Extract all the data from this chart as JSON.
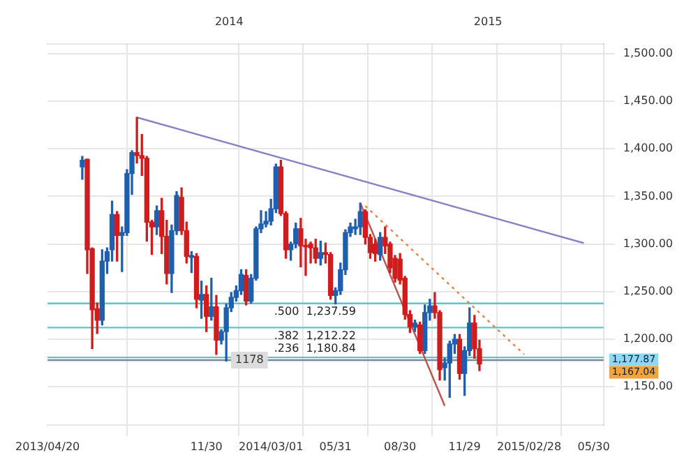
{
  "chart_data": {
    "type": "candlestick",
    "x": [
      "2013-06-08",
      "2013-06-15",
      "2013-06-22",
      "2013-06-29",
      "2013-07-06",
      "2013-07-13",
      "2013-07-20",
      "2013-07-27",
      "2013-08-03",
      "2013-08-10",
      "2013-08-17",
      "2013-08-24",
      "2013-08-31",
      "2013-09-07",
      "2013-09-14",
      "2013-09-21",
      "2013-09-28",
      "2013-10-05",
      "2013-10-12",
      "2013-10-19",
      "2013-10-26",
      "2013-11-02",
      "2013-11-09",
      "2013-11-16",
      "2013-11-23",
      "2013-11-30",
      "2013-12-07",
      "2013-12-14",
      "2013-12-21",
      "2013-12-28",
      "2014-01-04",
      "2014-01-11",
      "2014-01-18",
      "2014-01-25",
      "2014-02-01",
      "2014-02-08",
      "2014-02-15",
      "2014-02-22",
      "2014-03-01",
      "2014-03-08",
      "2014-03-15",
      "2014-03-22",
      "2014-03-29",
      "2014-04-05",
      "2014-04-12",
      "2014-04-19",
      "2014-04-26",
      "2014-05-03",
      "2014-05-10",
      "2014-05-17",
      "2014-05-24",
      "2014-05-31",
      "2014-06-07",
      "2014-06-14",
      "2014-06-21",
      "2014-06-28",
      "2014-07-05",
      "2014-07-12",
      "2014-07-19",
      "2014-07-26",
      "2014-08-02",
      "2014-08-09",
      "2014-08-16",
      "2014-08-23",
      "2014-08-30",
      "2014-09-06",
      "2014-09-13",
      "2014-09-20",
      "2014-09-27",
      "2014-10-04",
      "2014-10-11",
      "2014-10-18",
      "2014-10-25",
      "2014-11-01",
      "2014-11-08",
      "2014-11-15",
      "2014-11-22",
      "2014-11-29",
      "2014-12-06",
      "2014-12-13",
      "2014-12-20"
    ],
    "ohlc": [
      [
        1381,
        1392,
        1368,
        1388
      ],
      [
        1389,
        1389,
        1269,
        1294
      ],
      [
        1295,
        1296,
        1190,
        1231
      ],
      [
        1232,
        1238,
        1206,
        1220
      ],
      [
        1220,
        1294,
        1215,
        1282
      ],
      [
        1282,
        1296,
        1269,
        1292
      ],
      [
        1294,
        1345,
        1282,
        1331
      ],
      [
        1331,
        1334,
        1282,
        1309
      ],
      [
        1309,
        1318,
        1271,
        1312
      ],
      [
        1312,
        1378,
        1309,
        1374
      ],
      [
        1374,
        1398,
        1352,
        1396
      ],
      [
        1396,
        1433,
        1385,
        1393
      ],
      [
        1393,
        1415,
        1372,
        1390
      ],
      [
        1390,
        1392,
        1303,
        1323
      ],
      [
        1323,
        1325,
        1289,
        1318
      ],
      [
        1318,
        1340,
        1310,
        1335
      ],
      [
        1335,
        1348,
        1290,
        1308
      ],
      [
        1308,
        1325,
        1258,
        1269
      ],
      [
        1269,
        1320,
        1249,
        1314
      ],
      [
        1314,
        1355,
        1310,
        1351
      ],
      [
        1349,
        1359,
        1310,
        1314
      ],
      [
        1314,
        1323,
        1280,
        1287
      ],
      [
        1286,
        1292,
        1270,
        1288
      ],
      [
        1287,
        1290,
        1233,
        1242
      ],
      [
        1241,
        1261,
        1222,
        1247
      ],
      [
        1247,
        1256,
        1208,
        1224
      ],
      [
        1224,
        1264,
        1220,
        1234
      ],
      [
        1234,
        1246,
        1184,
        1199
      ],
      [
        1199,
        1210,
        1195,
        1208
      ],
      [
        1208,
        1237,
        1177,
        1233
      ],
      [
        1233,
        1249,
        1229,
        1244
      ],
      [
        1244,
        1256,
        1240,
        1251
      ],
      [
        1251,
        1273,
        1247,
        1268
      ],
      [
        1267,
        1273,
        1236,
        1240
      ],
      [
        1240,
        1268,
        1238,
        1264
      ],
      [
        1264,
        1318,
        1262,
        1316
      ],
      [
        1316,
        1335,
        1312,
        1321
      ],
      [
        1321,
        1334,
        1318,
        1324
      ],
      [
        1324,
        1347,
        1320,
        1337
      ],
      [
        1337,
        1384,
        1333,
        1381
      ],
      [
        1381,
        1388,
        1330,
        1332
      ],
      [
        1332,
        1334,
        1285,
        1294
      ],
      [
        1294,
        1302,
        1283,
        1300
      ],
      [
        1300,
        1322,
        1296,
        1316
      ],
      [
        1316,
        1327,
        1276,
        1298
      ],
      [
        1298,
        1305,
        1267,
        1297
      ],
      [
        1300,
        1302,
        1280,
        1296
      ],
      [
        1296,
        1305,
        1280,
        1285
      ],
      [
        1285,
        1303,
        1278,
        1291
      ],
      [
        1291,
        1301,
        1280,
        1289
      ],
      [
        1289,
        1291,
        1242,
        1246
      ],
      [
        1246,
        1254,
        1237,
        1251
      ],
      [
        1251,
        1280,
        1247,
        1273
      ],
      [
        1273,
        1315,
        1268,
        1312
      ],
      [
        1312,
        1322,
        1308,
        1318
      ],
      [
        1316,
        1326,
        1310,
        1318
      ],
      [
        1318,
        1343,
        1310,
        1334
      ],
      [
        1334,
        1336,
        1300,
        1307
      ],
      [
        1307,
        1310,
        1285,
        1291
      ],
      [
        1300,
        1305,
        1282,
        1290
      ],
      [
        1289,
        1312,
        1283,
        1307
      ],
      [
        1307,
        1318,
        1290,
        1298
      ],
      [
        1300,
        1302,
        1270,
        1275
      ],
      [
        1285,
        1288,
        1260,
        1264
      ],
      [
        1284,
        1290,
        1258,
        1262
      ],
      [
        1264,
        1266,
        1221,
        1226
      ],
      [
        1226,
        1230,
        1207,
        1213
      ],
      [
        1213,
        1220,
        1208,
        1217
      ],
      [
        1215,
        1218,
        1185,
        1188
      ],
      [
        1188,
        1236,
        1185,
        1228
      ],
      [
        1228,
        1242,
        1220,
        1235
      ],
      [
        1235,
        1249,
        1222,
        1228
      ],
      [
        1228,
        1230,
        1157,
        1168
      ],
      [
        1170,
        1180,
        1157,
        1175
      ],
      [
        1175,
        1198,
        1139,
        1195
      ],
      [
        1195,
        1205,
        1185,
        1200
      ],
      [
        1200,
        1205,
        1158,
        1164
      ],
      [
        1164,
        1192,
        1141,
        1188
      ],
      [
        1188,
        1233,
        1183,
        1217
      ],
      [
        1217,
        1225,
        1180,
        1190
      ],
      [
        1190,
        1199,
        1167,
        1174
      ]
    ],
    "colors": [
      "#1f5fb0",
      "#d01c1c",
      "#d01c1c",
      "#d01c1c",
      "#1f5fb0",
      "#1f5fb0",
      "#1f5fb0",
      "#d01c1c",
      "#1f5fb0",
      "#1f5fb0",
      "#1f5fb0",
      "#d01c1c",
      "#d01c1c",
      "#d01c1c",
      "#d01c1c",
      "#1f5fb0",
      "#d01c1c",
      "#d01c1c",
      "#1f5fb0",
      "#1f5fb0",
      "#d01c1c",
      "#d01c1c",
      "#1f5fb0",
      "#d01c1c",
      "#1f5fb0",
      "#d01c1c",
      "#1f5fb0",
      "#d01c1c",
      "#1f5fb0",
      "#1f5fb0",
      "#1f5fb0",
      "#1f5fb0",
      "#1f5fb0",
      "#d01c1c",
      "#1f5fb0",
      "#1f5fb0",
      "#1f5fb0",
      "#1f5fb0",
      "#1f5fb0",
      "#1f5fb0",
      "#d01c1c",
      "#d01c1c",
      "#1f5fb0",
      "#1f5fb0",
      "#d01c1c",
      "#d01c1c",
      "#d01c1c",
      "#d01c1c",
      "#1f5fb0",
      "#d01c1c",
      "#d01c1c",
      "#1f5fb0",
      "#1f5fb0",
      "#1f5fb0",
      "#1f5fb0",
      "#1f5fb0",
      "#1f5fb0",
      "#d01c1c",
      "#d01c1c",
      "#d01c1c",
      "#1f5fb0",
      "#d01c1c",
      "#d01c1c",
      "#d01c1c",
      "#d01c1c",
      "#d01c1c",
      "#d01c1c",
      "#1f5fb0",
      "#d01c1c",
      "#1f5fb0",
      "#1f5fb0",
      "#d01c1c",
      "#d01c1c",
      "#1f5fb0",
      "#1f5fb0",
      "#1f5fb0",
      "#d01c1c",
      "#1f5fb0",
      "#1f5fb0",
      "#d01c1c",
      "#d01c1c"
    ],
    "series": [
      {
        "type": "line",
        "color": "#8a80c4",
        "x": [
          "2013-08-24",
          "2015-05-16"
        ],
        "values": [
          1433,
          1301
        ]
      },
      {
        "type": "line",
        "color": "#c0504d",
        "x": [
          "2014-07-05",
          "2014-11-01"
        ],
        "values": [
          1343,
          1130
        ]
      },
      {
        "type": "line",
        "color": "#e8804a",
        "line_style": "dotted",
        "x": [
          "2014-07-12",
          "2015-02-21"
        ],
        "values": [
          1340,
          1184
        ]
      }
    ],
    "ref_lines": [
      {
        "axis": "y",
        "value": 1178,
        "label": "1178",
        "color": "#7a8796"
      },
      {
        "axis": "y",
        "value": 1237.59,
        "label": ".500  1,237.59",
        "color": "#5cc6c8"
      },
      {
        "axis": "y",
        "value": 1212.22,
        "label": ".382  1,212.22",
        "color": "#5cc6c8"
      },
      {
        "axis": "y",
        "value": 1180.84,
        "label": ".236  1,180.84",
        "color": "#5cc6c8"
      }
    ],
    "annotations": [
      "1,177.87",
      "1,167.04"
    ],
    "xlim": [
      "2013-04-20",
      "2015-06-13"
    ],
    "xticks": [
      {
        "value": "2013-04-20",
        "label": "2013/04/20"
      },
      {
        "value": "2013-11-30",
        "label": "11/30"
      },
      {
        "value": "2014-03-01",
        "label": "2014/03/01"
      },
      {
        "value": "2014-05-31",
        "label": "05/31"
      },
      {
        "value": "2014-08-30",
        "label": "08/30"
      },
      {
        "value": "2014-11-29",
        "label": "11/29"
      },
      {
        "value": "2015-02-28",
        "label": "2015/02/28"
      },
      {
        "value": "2015-05-30",
        "label": "05/30"
      }
    ],
    "x2lim": [
      "2013-04-20",
      "2015-06-13"
    ],
    "x2ticks": [
      {
        "value": "2014-01-01",
        "label": "2014"
      },
      {
        "value": "2015-01-01",
        "label": "2015"
      }
    ],
    "ylim": [
      1110,
      1510
    ],
    "yticks": [
      {
        "value": 1150,
        "label": "1,150.00"
      },
      {
        "value": 1200,
        "label": "1,200.00"
      },
      {
        "value": 1250,
        "label": "1,250.00"
      },
      {
        "value": 1300,
        "label": "1,300.00"
      },
      {
        "value": 1350,
        "label": "1,350.00"
      },
      {
        "value": 1400,
        "label": "1,400.00"
      },
      {
        "value": 1450,
        "label": "1,450.00"
      },
      {
        "value": 1500,
        "label": "1,500.00"
      }
    ],
    "grid": true,
    "legend": false
  }
}
